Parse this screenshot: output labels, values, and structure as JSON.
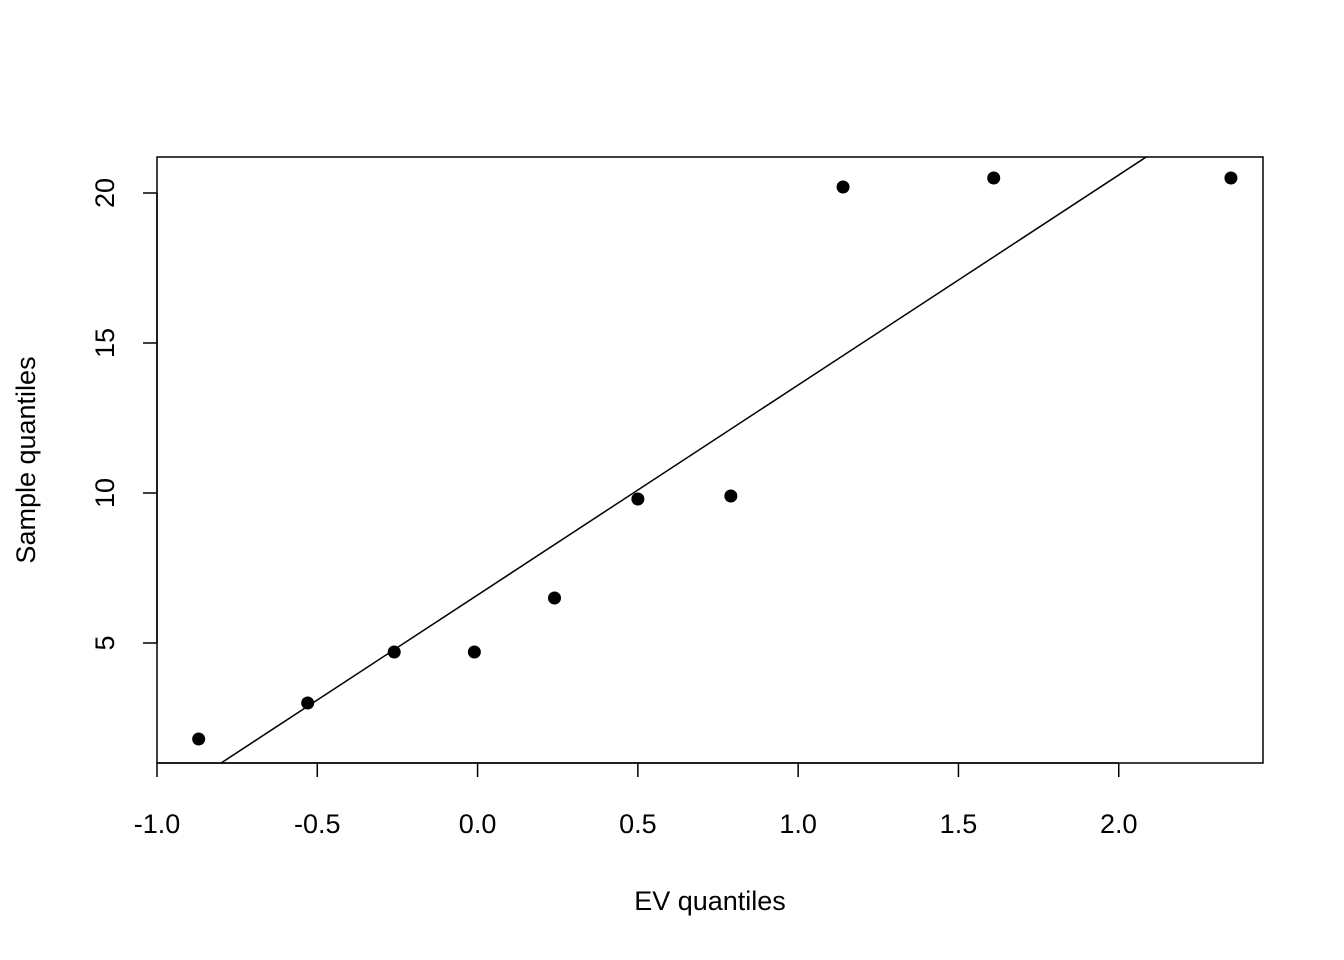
{
  "chart_data": {
    "type": "scatter",
    "title": "",
    "xlabel": "EV quantiles",
    "ylabel": "Sample quantiles",
    "xlim": [
      -1.0,
      2.45
    ],
    "ylim": [
      1.0,
      21.2
    ],
    "x_ticks": [
      -1.0,
      -0.5,
      0.0,
      0.5,
      1.0,
      1.5,
      2.0
    ],
    "x_tick_labels": [
      "-1.0",
      "-0.5",
      "0.0",
      "0.5",
      "1.0",
      "1.5",
      "2.0"
    ],
    "y_ticks": [
      5,
      10,
      15,
      20
    ],
    "y_tick_labels": [
      "5",
      "10",
      "15",
      "20"
    ],
    "grid": false,
    "series": [
      {
        "points": [
          {
            "x": -0.87,
            "y": 1.8
          },
          {
            "x": -0.53,
            "y": 3.0
          },
          {
            "x": -0.26,
            "y": 4.7
          },
          {
            "x": -0.01,
            "y": 4.7
          },
          {
            "x": 0.24,
            "y": 6.5
          },
          {
            "x": 0.5,
            "y": 9.8
          },
          {
            "x": 0.79,
            "y": 9.9
          },
          {
            "x": 1.14,
            "y": 20.2
          },
          {
            "x": 1.61,
            "y": 20.5
          },
          {
            "x": 2.35,
            "y": 20.5
          }
        ]
      }
    ],
    "reference_line": {
      "intercept": 6.6,
      "slope": 7.0
    },
    "colors": {
      "points": "#000000",
      "line": "#000000",
      "axis": "#000000"
    }
  }
}
